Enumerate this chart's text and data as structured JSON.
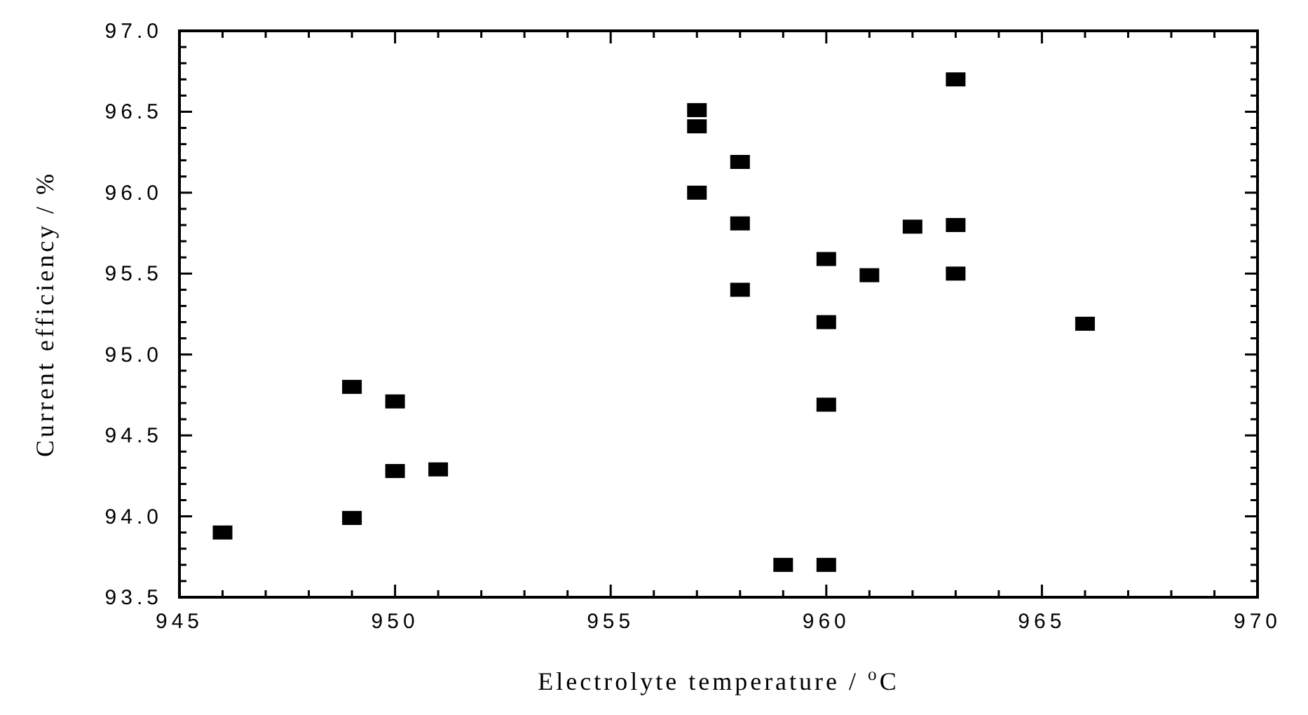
{
  "chart_data": {
    "type": "scatter",
    "xlabel": "Electrolyte temperature /  $^{o}$C",
    "ylabel": "Current efficiency / %",
    "x": [
      946,
      949,
      949,
      950,
      950,
      951,
      957,
      957,
      957,
      958,
      958,
      958,
      959,
      960,
      960,
      960,
      960,
      961,
      962,
      963,
      963,
      963,
      966
    ],
    "series": [
      {
        "color": "#000000",
        "values": [
          93.9,
          93.99,
          94.8,
          94.71,
          94.28,
          94.29,
          96.51,
          96.41,
          96.0,
          96.19,
          95.81,
          95.4,
          93.7,
          95.59,
          95.2,
          94.69,
          93.7,
          95.49,
          95.79,
          96.7,
          95.8,
          95.5,
          95.19
        ]
      }
    ],
    "marker": "square",
    "xlim": [
      945,
      970
    ],
    "ylim": [
      93.5,
      97.0
    ],
    "xticks": [
      945,
      {
        "value": 946,
        "label": null
      },
      {
        "value": 947,
        "label": null
      },
      {
        "value": 948,
        "label": null
      },
      {
        "value": 949,
        "label": null
      },
      950,
      {
        "value": 951,
        "label": null
      },
      {
        "value": 952,
        "label": null
      },
      {
        "value": 953,
        "label": null
      },
      {
        "value": 954,
        "label": null
      },
      955,
      {
        "value": 956,
        "label": null
      },
      {
        "value": 957,
        "label": null
      },
      {
        "value": 958,
        "label": null
      },
      {
        "value": 959,
        "label": null
      },
      960,
      {
        "value": 961,
        "label": null
      },
      {
        "value": 962,
        "label": null
      },
      {
        "value": 963,
        "label": null
      },
      {
        "value": 964,
        "label": null
      },
      965,
      {
        "value": 966,
        "label": null
      },
      {
        "value": 967,
        "label": null
      },
      {
        "value": 968,
        "label": null
      },
      {
        "value": 969,
        "label": null
      },
      970
    ],
    "yticks": [
      {
        "value": 93.5,
        "label": "93.5"
      },
      {
        "value": 93.6,
        "label": null
      },
      {
        "value": 93.7,
        "label": null
      },
      {
        "value": 93.8,
        "label": null
      },
      {
        "value": 93.9,
        "label": null
      },
      {
        "value": 94.0,
        "label": "94.0"
      },
      {
        "value": 94.1,
        "label": null
      },
      {
        "value": 94.2,
        "label": null
      },
      {
        "value": 94.3,
        "label": null
      },
      {
        "value": 94.4,
        "label": null
      },
      {
        "value": 94.5,
        "label": "94.5"
      },
      {
        "value": 94.6,
        "label": null
      },
      {
        "value": 94.7,
        "label": null
      },
      {
        "value": 94.8,
        "label": null
      },
      {
        "value": 94.9,
        "label": null
      },
      {
        "value": 95.0,
        "label": "95.0"
      },
      {
        "value": 95.1,
        "label": null
      },
      {
        "value": 95.2,
        "label": null
      },
      {
        "value": 95.3,
        "label": null
      },
      {
        "value": 95.4,
        "label": null
      },
      {
        "value": 95.5,
        "label": "95.5"
      },
      {
        "value": 95.6,
        "label": null
      },
      {
        "value": 95.7,
        "label": null
      },
      {
        "value": 95.8,
        "label": null
      },
      {
        "value": 95.9,
        "label": null
      },
      {
        "value": 96.0,
        "label": "96.0"
      },
      {
        "value": 96.1,
        "label": null
      },
      {
        "value": 96.2,
        "label": null
      },
      {
        "value": 96.3,
        "label": null
      },
      {
        "value": 96.4,
        "label": null
      },
      {
        "value": 96.5,
        "label": "96.5"
      },
      {
        "value": 96.6,
        "label": null
      },
      {
        "value": 96.7,
        "label": null
      },
      {
        "value": 96.8,
        "label": null
      },
      {
        "value": 96.9,
        "label": null
      },
      {
        "value": 97.0,
        "label": "97.0"
      }
    ],
    "grid": false
  }
}
